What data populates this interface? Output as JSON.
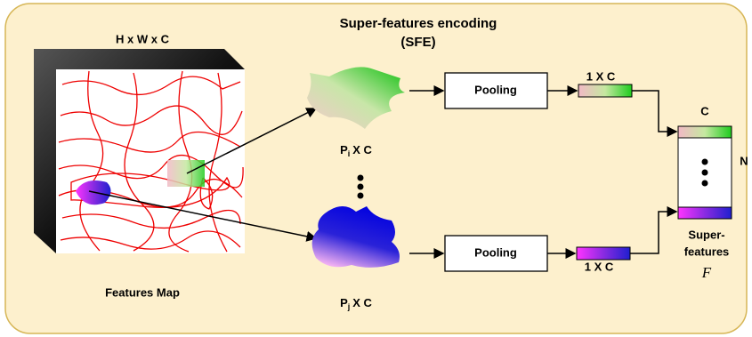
{
  "title": {
    "line1": "Super-features encoding",
    "line2": "(SFE)"
  },
  "features_map": {
    "dims": "H x W x C",
    "label": "Features Map"
  },
  "branches": [
    {
      "region_label": {
        "base": "P",
        "sub": "i",
        "suffix": "X C"
      },
      "pool": "Pooling",
      "vector": "1 X C"
    },
    {
      "region_label": {
        "base": "P",
        "sub": "j",
        "suffix": "X C"
      },
      "pool": "Pooling",
      "vector": "1 X C"
    }
  ],
  "output": {
    "columns": "C",
    "rows": "N",
    "label_line1": "Super-",
    "label_line2": "features",
    "symbol": "F"
  }
}
